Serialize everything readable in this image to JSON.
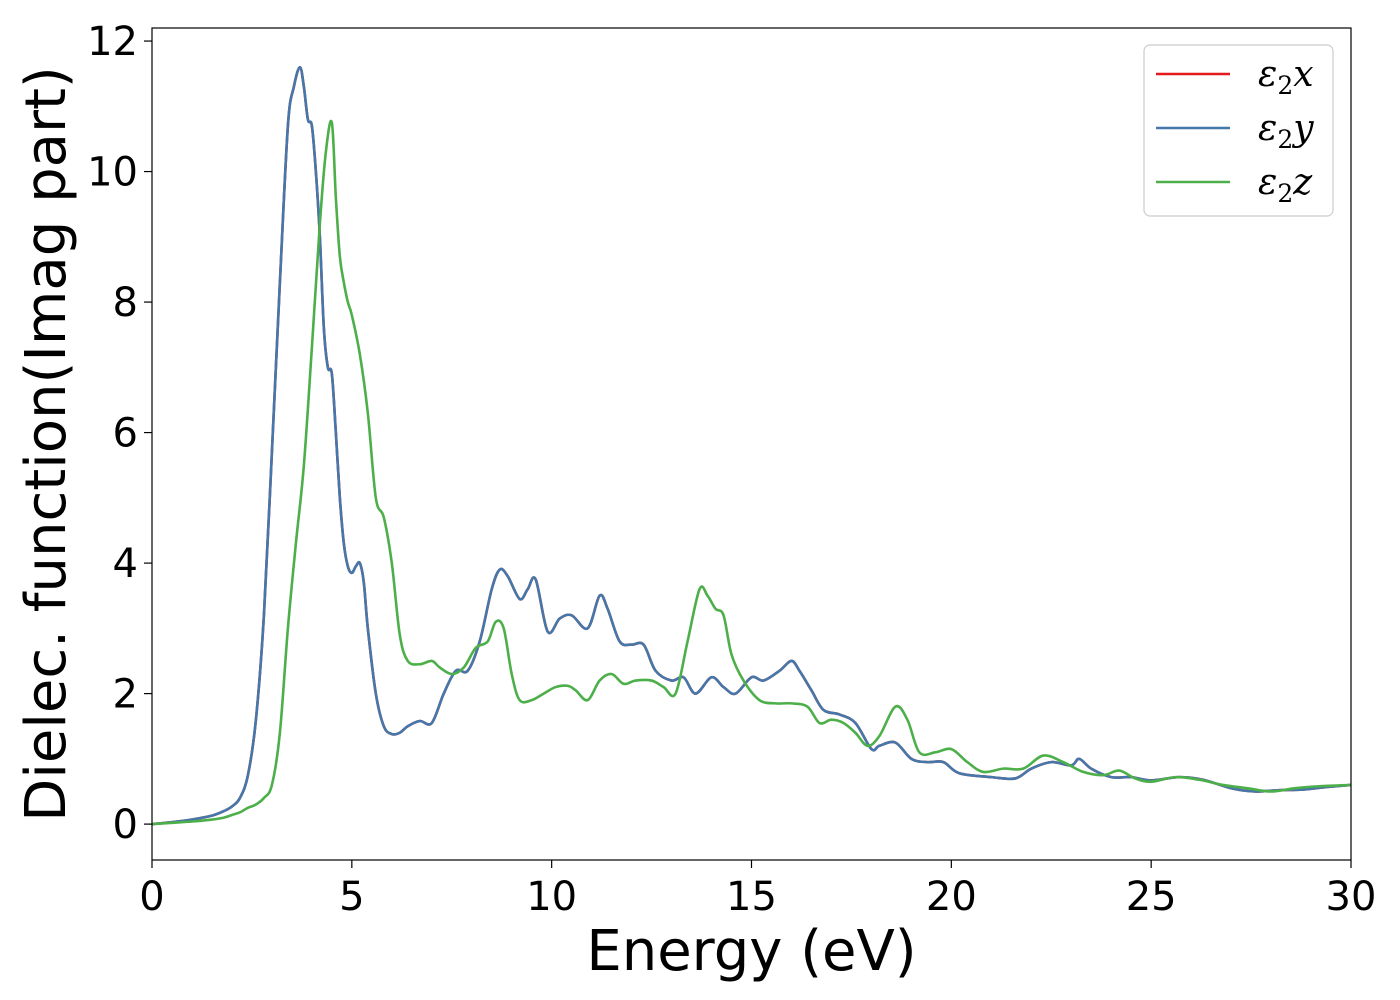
{
  "chart_data": {
    "type": "line",
    "title": "",
    "xlabel": "Energy (eV)",
    "ylabel": "Dielec. function(Imag part)",
    "xlim": [
      0,
      30
    ],
    "ylim": [
      -0.55,
      12.2
    ],
    "xticks": [
      0,
      5,
      10,
      15,
      20,
      25,
      30
    ],
    "yticks": [
      0,
      2,
      4,
      6,
      8,
      10,
      12
    ],
    "grid": false,
    "legend_position": "top-right",
    "series": [
      {
        "name": "ε₂x",
        "label_main": "ε",
        "label_sub": "2",
        "label_axis": "x",
        "color": "#e41a1c",
        "x": [
          0,
          0.5,
          1.0,
          1.5,
          1.8,
          2.0,
          2.2,
          2.4,
          2.6,
          2.8,
          3.0,
          3.2,
          3.4,
          3.55,
          3.7,
          3.8,
          3.9,
          4.0,
          4.1,
          4.2,
          4.3,
          4.4,
          4.5,
          4.6,
          4.7,
          4.8,
          4.9,
          5.0,
          5.1,
          5.2,
          5.3,
          5.4,
          5.6,
          5.8,
          6.0,
          6.2,
          6.4,
          6.7,
          7.0,
          7.3,
          7.6,
          7.9,
          8.2,
          8.5,
          8.7,
          8.9,
          9.2,
          9.4,
          9.6,
          9.9,
          10.2,
          10.5,
          10.9,
          11.2,
          11.4,
          11.7,
          12.0,
          12.3,
          12.6,
          13.0,
          13.3,
          13.6,
          14.0,
          14.3,
          14.6,
          15.0,
          15.3,
          15.7,
          16.0,
          16.2,
          16.5,
          16.8,
          17.2,
          17.6,
          18.0,
          18.2,
          18.6,
          19.0,
          19.4,
          19.8,
          20.2,
          21.0,
          21.6,
          22.0,
          22.5,
          23.0,
          23.2,
          23.5,
          24.0,
          24.5,
          25.0,
          25.7,
          26.3,
          27.0,
          27.6,
          28.2,
          28.8,
          29.4,
          30.0
        ],
        "values": [
          0,
          0.03,
          0.07,
          0.13,
          0.2,
          0.27,
          0.4,
          0.75,
          1.6,
          3.2,
          5.7,
          8.3,
          10.7,
          11.3,
          11.6,
          11.3,
          10.8,
          10.7,
          10.0,
          9.0,
          7.6,
          7.0,
          6.9,
          6.0,
          5.0,
          4.3,
          3.95,
          3.85,
          3.95,
          4.0,
          3.7,
          3.0,
          2.0,
          1.5,
          1.38,
          1.4,
          1.5,
          1.58,
          1.55,
          2.0,
          2.35,
          2.35,
          2.8,
          3.6,
          3.9,
          3.8,
          3.45,
          3.6,
          3.75,
          2.95,
          3.15,
          3.2,
          3.0,
          3.5,
          3.3,
          2.8,
          2.75,
          2.75,
          2.35,
          2.2,
          2.25,
          2.0,
          2.25,
          2.1,
          2.0,
          2.25,
          2.2,
          2.35,
          2.5,
          2.35,
          2.05,
          1.75,
          1.68,
          1.55,
          1.15,
          1.2,
          1.25,
          1.0,
          0.95,
          0.95,
          0.78,
          0.72,
          0.7,
          0.85,
          0.95,
          0.9,
          1.0,
          0.85,
          0.72,
          0.72,
          0.67,
          0.72,
          0.68,
          0.55,
          0.5,
          0.52,
          0.53,
          0.57,
          0.6
        ]
      },
      {
        "name": "ε₂y",
        "label_main": "ε",
        "label_sub": "2",
        "label_axis": "y",
        "color": "#4477aa",
        "x": [
          0,
          0.5,
          1.0,
          1.5,
          1.8,
          2.0,
          2.2,
          2.4,
          2.6,
          2.8,
          3.0,
          3.2,
          3.4,
          3.55,
          3.7,
          3.8,
          3.9,
          4.0,
          4.1,
          4.2,
          4.3,
          4.4,
          4.5,
          4.6,
          4.7,
          4.8,
          4.9,
          5.0,
          5.1,
          5.2,
          5.3,
          5.4,
          5.6,
          5.8,
          6.0,
          6.2,
          6.4,
          6.7,
          7.0,
          7.3,
          7.6,
          7.9,
          8.2,
          8.5,
          8.7,
          8.9,
          9.2,
          9.4,
          9.6,
          9.9,
          10.2,
          10.5,
          10.9,
          11.2,
          11.4,
          11.7,
          12.0,
          12.3,
          12.6,
          13.0,
          13.3,
          13.6,
          14.0,
          14.3,
          14.6,
          15.0,
          15.3,
          15.7,
          16.0,
          16.2,
          16.5,
          16.8,
          17.2,
          17.6,
          18.0,
          18.2,
          18.6,
          19.0,
          19.4,
          19.8,
          20.2,
          21.0,
          21.6,
          22.0,
          22.5,
          23.0,
          23.2,
          23.5,
          24.0,
          24.5,
          25.0,
          25.7,
          26.3,
          27.0,
          27.6,
          28.2,
          28.8,
          29.4,
          30.0
        ],
        "values": [
          0,
          0.03,
          0.07,
          0.13,
          0.2,
          0.27,
          0.4,
          0.75,
          1.6,
          3.2,
          5.7,
          8.3,
          10.7,
          11.3,
          11.6,
          11.3,
          10.8,
          10.7,
          10.0,
          9.0,
          7.6,
          7.0,
          6.9,
          6.0,
          5.0,
          4.3,
          3.95,
          3.85,
          3.95,
          4.0,
          3.7,
          3.0,
          2.0,
          1.5,
          1.38,
          1.4,
          1.5,
          1.58,
          1.55,
          2.0,
          2.35,
          2.35,
          2.8,
          3.6,
          3.9,
          3.8,
          3.45,
          3.6,
          3.75,
          2.95,
          3.15,
          3.2,
          3.0,
          3.5,
          3.3,
          2.8,
          2.75,
          2.75,
          2.35,
          2.2,
          2.25,
          2.0,
          2.25,
          2.1,
          2.0,
          2.25,
          2.2,
          2.35,
          2.5,
          2.35,
          2.05,
          1.75,
          1.68,
          1.55,
          1.15,
          1.2,
          1.25,
          1.0,
          0.95,
          0.95,
          0.78,
          0.72,
          0.7,
          0.85,
          0.95,
          0.9,
          1.0,
          0.85,
          0.72,
          0.72,
          0.67,
          0.72,
          0.68,
          0.55,
          0.5,
          0.52,
          0.53,
          0.57,
          0.6
        ]
      },
      {
        "name": "ε₂z",
        "label_main": "ε",
        "label_sub": "2",
        "label_axis": "z",
        "color": "#4daf4a",
        "x": [
          0,
          0.5,
          1.0,
          1.5,
          1.8,
          2.0,
          2.2,
          2.4,
          2.6,
          2.8,
          3.0,
          3.2,
          3.4,
          3.6,
          3.8,
          4.0,
          4.2,
          4.35,
          4.5,
          4.6,
          4.7,
          4.8,
          4.9,
          5.0,
          5.2,
          5.4,
          5.6,
          5.8,
          6.0,
          6.2,
          6.4,
          6.7,
          7.0,
          7.2,
          7.5,
          7.8,
          8.1,
          8.4,
          8.6,
          8.8,
          9.0,
          9.2,
          9.5,
          9.8,
          10.1,
          10.4,
          10.6,
          10.9,
          11.2,
          11.5,
          11.8,
          12.1,
          12.5,
          12.8,
          13.1,
          13.4,
          13.7,
          13.9,
          14.1,
          14.3,
          14.5,
          14.8,
          15.2,
          15.6,
          16.0,
          16.4,
          16.7,
          17.0,
          17.3,
          17.6,
          17.9,
          18.2,
          18.6,
          18.9,
          19.2,
          19.6,
          20.0,
          20.4,
          20.8,
          21.3,
          21.8,
          22.3,
          22.8,
          23.3,
          23.8,
          24.2,
          24.6,
          25.0,
          25.6,
          26.2,
          26.8,
          27.4,
          28.0,
          28.6,
          29.2,
          30.0
        ],
        "values": [
          0,
          0.02,
          0.04,
          0.07,
          0.1,
          0.14,
          0.18,
          0.25,
          0.3,
          0.4,
          0.6,
          1.4,
          3.0,
          4.3,
          5.5,
          7.3,
          9.2,
          10.3,
          10.75,
          9.6,
          8.7,
          8.3,
          8.0,
          7.8,
          7.2,
          6.3,
          5.0,
          4.7,
          4.0,
          2.9,
          2.5,
          2.45,
          2.5,
          2.4,
          2.3,
          2.4,
          2.7,
          2.8,
          3.1,
          3.0,
          2.3,
          1.9,
          1.9,
          2.0,
          2.1,
          2.12,
          2.05,
          1.9,
          2.2,
          2.3,
          2.15,
          2.2,
          2.2,
          2.1,
          2.0,
          2.8,
          3.6,
          3.5,
          3.3,
          3.2,
          2.6,
          2.2,
          1.9,
          1.85,
          1.85,
          1.8,
          1.55,
          1.6,
          1.55,
          1.4,
          1.2,
          1.35,
          1.8,
          1.6,
          1.1,
          1.1,
          1.15,
          0.95,
          0.8,
          0.85,
          0.85,
          1.05,
          0.95,
          0.8,
          0.75,
          0.82,
          0.7,
          0.65,
          0.72,
          0.68,
          0.6,
          0.55,
          0.5,
          0.55,
          0.58,
          0.6
        ]
      }
    ]
  }
}
